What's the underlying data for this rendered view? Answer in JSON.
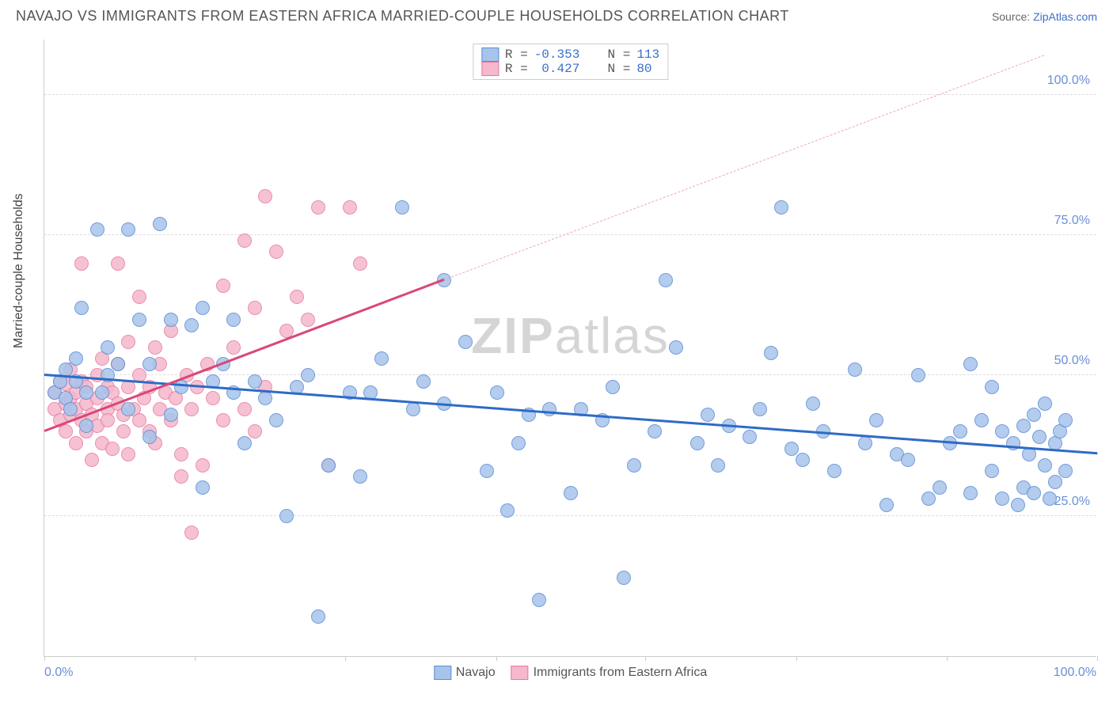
{
  "title": "NAVAJO VS IMMIGRANTS FROM EASTERN AFRICA MARRIED-COUPLE HOUSEHOLDS CORRELATION CHART",
  "source_label": "Source: ",
  "source_link": "ZipAtlas.com",
  "ylabel": "Married-couple Households",
  "watermark_bold": "ZIP",
  "watermark_rest": "atlas",
  "chart": {
    "type": "scatter",
    "xlim": [
      0,
      100
    ],
    "ylim": [
      0,
      110
    ],
    "x_tick_labels": {
      "left": "0.0%",
      "right": "100.0%"
    },
    "x_tick_positions": [
      0,
      14.3,
      28.6,
      42.9,
      57.1,
      71.4,
      85.7,
      100
    ],
    "y_gridlines": [
      25,
      50,
      75,
      100
    ],
    "y_tick_labels": [
      "25.0%",
      "50.0%",
      "75.0%",
      "100.0%"
    ],
    "background_color": "#ffffff",
    "grid_color": "#dddddd",
    "axis_color": "#cccccc",
    "marker_radius": 9,
    "marker_stroke_width": 1.5,
    "marker_fill_opacity": 0.25
  },
  "series": {
    "navajo": {
      "label": "Navajo",
      "stroke": "#5b8dd6",
      "fill": "#a8c4ea",
      "R_label": "R =",
      "R_value": "-0.353",
      "N_label": "N =",
      "N_value": "113",
      "trend": {
        "x1": 0,
        "y1": 50,
        "x2": 100,
        "y2": 36,
        "color": "#2e6bc7",
        "width": 2.5
      },
      "points": [
        [
          1,
          47
        ],
        [
          1.5,
          49
        ],
        [
          2,
          46
        ],
        [
          2,
          51
        ],
        [
          2.5,
          44
        ],
        [
          3,
          49
        ],
        [
          3,
          53
        ],
        [
          3.5,
          62
        ],
        [
          4,
          47
        ],
        [
          4,
          41
        ],
        [
          5,
          76
        ],
        [
          5.5,
          47
        ],
        [
          6,
          50
        ],
        [
          6,
          55
        ],
        [
          7,
          52
        ],
        [
          8,
          76
        ],
        [
          8,
          44
        ],
        [
          9,
          60
        ],
        [
          10,
          39
        ],
        [
          10,
          52
        ],
        [
          11,
          77
        ],
        [
          12,
          43
        ],
        [
          12,
          60
        ],
        [
          13,
          48
        ],
        [
          14,
          59
        ],
        [
          15,
          62
        ],
        [
          15,
          30
        ],
        [
          16,
          49
        ],
        [
          17,
          52
        ],
        [
          18,
          47
        ],
        [
          18,
          60
        ],
        [
          19,
          38
        ],
        [
          20,
          49
        ],
        [
          21,
          46
        ],
        [
          22,
          42
        ],
        [
          23,
          25
        ],
        [
          24,
          48
        ],
        [
          25,
          50
        ],
        [
          26,
          7
        ],
        [
          27,
          34
        ],
        [
          29,
          47
        ],
        [
          30,
          32
        ],
        [
          31,
          47
        ],
        [
          32,
          53
        ],
        [
          34,
          80
        ],
        [
          35,
          44
        ],
        [
          36,
          49
        ],
        [
          38,
          67
        ],
        [
          38,
          45
        ],
        [
          40,
          56
        ],
        [
          42,
          33
        ],
        [
          43,
          47
        ],
        [
          44,
          26
        ],
        [
          45,
          38
        ],
        [
          46,
          43
        ],
        [
          47,
          10
        ],
        [
          48,
          44
        ],
        [
          50,
          29
        ],
        [
          51,
          44
        ],
        [
          53,
          42
        ],
        [
          54,
          48
        ],
        [
          55,
          14
        ],
        [
          56,
          34
        ],
        [
          58,
          40
        ],
        [
          59,
          67
        ],
        [
          60,
          55
        ],
        [
          62,
          38
        ],
        [
          63,
          43
        ],
        [
          64,
          34
        ],
        [
          65,
          41
        ],
        [
          67,
          39
        ],
        [
          68,
          44
        ],
        [
          69,
          54
        ],
        [
          70,
          80
        ],
        [
          71,
          37
        ],
        [
          72,
          35
        ],
        [
          73,
          45
        ],
        [
          74,
          40
        ],
        [
          75,
          33
        ],
        [
          77,
          51
        ],
        [
          78,
          38
        ],
        [
          79,
          42
        ],
        [
          80,
          27
        ],
        [
          81,
          36
        ],
        [
          82,
          35
        ],
        [
          83,
          50
        ],
        [
          84,
          28
        ],
        [
          85,
          30
        ],
        [
          86,
          38
        ],
        [
          87,
          40
        ],
        [
          88,
          29
        ],
        [
          88,
          52
        ],
        [
          89,
          42
        ],
        [
          90,
          33
        ],
        [
          90,
          48
        ],
        [
          91,
          40
        ],
        [
          91,
          28
        ],
        [
          92,
          38
        ],
        [
          92.5,
          27
        ],
        [
          93,
          41
        ],
        [
          93,
          30
        ],
        [
          93.5,
          36
        ],
        [
          94,
          43
        ],
        [
          94,
          29
        ],
        [
          94.5,
          39
        ],
        [
          95,
          34
        ],
        [
          95,
          45
        ],
        [
          95.5,
          28
        ],
        [
          96,
          38
        ],
        [
          96,
          31
        ],
        [
          96.5,
          40
        ],
        [
          97,
          33
        ],
        [
          97,
          42
        ]
      ]
    },
    "immigrants": {
      "label": "Immigrants from Eastern Africa",
      "stroke": "#e77ba0",
      "fill": "#f5b8cc",
      "R_label": "R =",
      "R_value": "0.427",
      "N_label": "N =",
      "N_value": "80",
      "trend_solid": {
        "x1": 0,
        "y1": 40,
        "x2": 38,
        "y2": 67,
        "color": "#d94876",
        "width": 2.5
      },
      "trend_dash": {
        "x1": 38,
        "y1": 67,
        "x2": 95,
        "y2": 107,
        "color": "#f0a5bc",
        "width": 1.5
      },
      "points": [
        [
          1,
          44
        ],
        [
          1,
          47
        ],
        [
          1.5,
          42
        ],
        [
          1.5,
          49
        ],
        [
          2,
          40
        ],
        [
          2,
          45
        ],
        [
          2,
          48.5
        ],
        [
          2.5,
          43
        ],
        [
          2.5,
          46
        ],
        [
          2.5,
          51
        ],
        [
          3,
          38
        ],
        [
          3,
          47
        ],
        [
          3,
          44
        ],
        [
          3.5,
          42
        ],
        [
          3.5,
          49
        ],
        [
          3.5,
          70
        ],
        [
          4,
          45
        ],
        [
          4,
          40
        ],
        [
          4,
          48
        ],
        [
          4.5,
          43
        ],
        [
          4.5,
          35
        ],
        [
          5,
          46
        ],
        [
          5,
          41
        ],
        [
          5,
          50
        ],
        [
          5.5,
          53
        ],
        [
          5.5,
          38
        ],
        [
          6,
          44
        ],
        [
          6,
          48
        ],
        [
          6,
          42
        ],
        [
          6.5,
          37
        ],
        [
          6.5,
          47
        ],
        [
          7,
          45
        ],
        [
          7,
          52
        ],
        [
          7,
          70
        ],
        [
          7.5,
          43
        ],
        [
          7.5,
          40
        ],
        [
          8,
          48
        ],
        [
          8,
          36
        ],
        [
          8,
          56
        ],
        [
          8.5,
          44
        ],
        [
          9,
          42
        ],
        [
          9,
          50
        ],
        [
          9,
          64
        ],
        [
          9.5,
          46
        ],
        [
          10,
          40
        ],
        [
          10,
          48
        ],
        [
          10.5,
          55
        ],
        [
          10.5,
          38
        ],
        [
          11,
          44
        ],
        [
          11,
          52
        ],
        [
          11.5,
          47
        ],
        [
          12,
          42
        ],
        [
          12,
          58
        ],
        [
          12.5,
          46
        ],
        [
          13,
          36
        ],
        [
          13,
          32
        ],
        [
          13.5,
          50
        ],
        [
          14,
          22
        ],
        [
          14,
          44
        ],
        [
          14.5,
          48
        ],
        [
          15,
          34
        ],
        [
          15.5,
          52
        ],
        [
          16,
          46
        ],
        [
          17,
          42
        ],
        [
          17,
          66
        ],
        [
          18,
          55
        ],
        [
          19,
          44
        ],
        [
          19,
          74
        ],
        [
          20,
          40
        ],
        [
          20,
          62
        ],
        [
          21,
          48
        ],
        [
          21,
          82
        ],
        [
          22,
          72
        ],
        [
          23,
          58
        ],
        [
          24,
          64
        ],
        [
          25,
          60
        ],
        [
          26,
          80
        ],
        [
          27,
          34
        ],
        [
          29,
          80
        ],
        [
          30,
          70
        ]
      ]
    }
  }
}
